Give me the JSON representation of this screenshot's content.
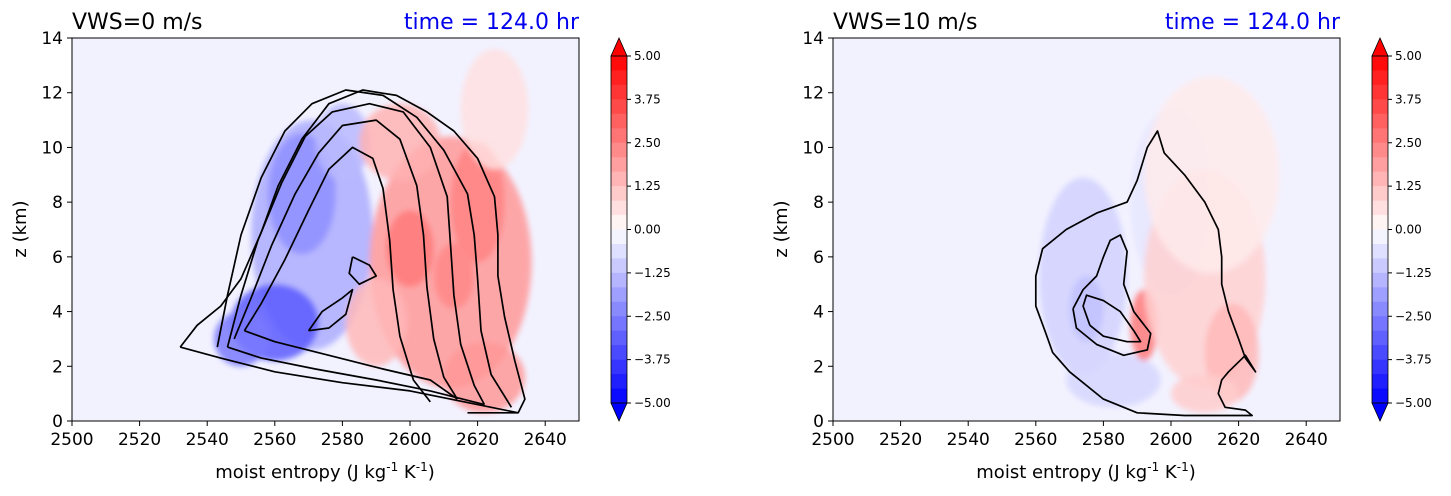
{
  "chart_data": [
    {
      "type": "heatmap",
      "title": "VWS=0 m/s",
      "time_label": "time = 124.0 hr",
      "xlabel": "moist entropy (J kg$^{-1}$ K$^{-1}$)",
      "ylabel": "z (km)",
      "xlim": [
        2500,
        2650
      ],
      "ylim": [
        0,
        14
      ],
      "xticks": [
        2500,
        2520,
        2540,
        2560,
        2580,
        2600,
        2620,
        2640
      ],
      "yticks": [
        0,
        2,
        4,
        6,
        8,
        10,
        12,
        14
      ],
      "colorbar": {
        "ticks": [
          "5.00",
          "3.75",
          "2.50",
          "1.25",
          "0.00",
          "−1.25",
          "−2.50",
          "−3.75",
          "−5.00"
        ],
        "range": [
          -5,
          5
        ],
        "extend": "both"
      },
      "blobs": [
        {
          "x": 2571,
          "y": 6.8,
          "rx": 18,
          "ry": 4.2,
          "v": -1.6
        },
        {
          "x": 2560,
          "y": 3.6,
          "rx": 13,
          "ry": 1.4,
          "v": -3.2
        },
        {
          "x": 2568,
          "y": 8.3,
          "rx": 10,
          "ry": 2.2,
          "v": -2.2
        },
        {
          "x": 2580,
          "y": 10.2,
          "rx": 8,
          "ry": 1.4,
          "v": -1.4
        },
        {
          "x": 2550,
          "y": 3.0,
          "rx": 8,
          "ry": 1.0,
          "v": -2.6
        },
        {
          "x": 2612,
          "y": 5.8,
          "rx": 24,
          "ry": 4.6,
          "v": 2.0
        },
        {
          "x": 2620,
          "y": 8.0,
          "rx": 8,
          "ry": 2.2,
          "v": 2.4
        },
        {
          "x": 2600,
          "y": 6.3,
          "rx": 7,
          "ry": 1.4,
          "v": 2.6
        },
        {
          "x": 2613,
          "y": 5.3,
          "rx": 6,
          "ry": 1.2,
          "v": 2.3
        },
        {
          "x": 2622,
          "y": 1.6,
          "rx": 12,
          "ry": 1.3,
          "v": 2.0
        },
        {
          "x": 2597,
          "y": 10.2,
          "rx": 12,
          "ry": 1.4,
          "v": 1.5
        },
        {
          "x": 2625,
          "y": 11.4,
          "rx": 10,
          "ry": 2.2,
          "v": 0.6
        },
        {
          "x": 2590,
          "y": 3.6,
          "rx": 9,
          "ry": 1.6,
          "v": 1.4
        }
      ],
      "contours": [
        [
          [
            2551,
            3.3
          ],
          [
            2556,
            4.3
          ],
          [
            2563,
            5.9
          ],
          [
            2570,
            7.7
          ],
          [
            2576,
            9.2
          ],
          [
            2583,
            10.0
          ],
          [
            2589,
            9.6
          ],
          [
            2592,
            8.5
          ],
          [
            2594,
            6.6
          ],
          [
            2595,
            4.8
          ],
          [
            2597,
            3.1
          ],
          [
            2601,
            1.5
          ],
          [
            2606,
            0.7
          ]
        ],
        [
          [
            2548,
            3.0
          ],
          [
            2553,
            4.5
          ],
          [
            2559,
            6.4
          ],
          [
            2566,
            8.3
          ],
          [
            2573,
            9.8
          ],
          [
            2580,
            10.8
          ],
          [
            2590,
            11.0
          ],
          [
            2597,
            10.3
          ],
          [
            2602,
            8.6
          ],
          [
            2604,
            6.8
          ],
          [
            2605,
            4.9
          ],
          [
            2607,
            3.0
          ],
          [
            2610,
            1.6
          ],
          [
            2614,
            0.8
          ]
        ],
        [
          [
            2546,
            2.7
          ],
          [
            2550,
            4.6
          ],
          [
            2555,
            6.6
          ],
          [
            2562,
            8.7
          ],
          [
            2569,
            10.4
          ],
          [
            2577,
            11.3
          ],
          [
            2588,
            11.6
          ],
          [
            2598,
            11.3
          ],
          [
            2606,
            10.0
          ],
          [
            2611,
            8.2
          ],
          [
            2612,
            6.4
          ],
          [
            2613,
            4.6
          ],
          [
            2615,
            2.8
          ],
          [
            2619,
            1.3
          ],
          [
            2622,
            0.6
          ]
        ],
        [
          [
            2543,
            2.7
          ],
          [
            2546,
            4.6
          ],
          [
            2550,
            6.8
          ],
          [
            2556,
            8.9
          ],
          [
            2563,
            10.6
          ],
          [
            2571,
            11.6
          ],
          [
            2581,
            12.1
          ],
          [
            2592,
            11.9
          ],
          [
            2602,
            11.1
          ],
          [
            2610,
            9.9
          ],
          [
            2617,
            8.3
          ],
          [
            2619,
            6.8
          ],
          [
            2620,
            5.2
          ],
          [
            2621,
            3.3
          ],
          [
            2624,
            1.7
          ],
          [
            2630,
            0.5
          ]
        ],
        [
          [
            2532,
            2.7
          ],
          [
            2537,
            3.5
          ],
          [
            2544,
            4.2
          ],
          [
            2550,
            5.2
          ],
          [
            2556,
            6.9
          ],
          [
            2561,
            8.6
          ],
          [
            2568,
            10.3
          ],
          [
            2576,
            11.6
          ],
          [
            2586,
            12.1
          ],
          [
            2596,
            11.9
          ],
          [
            2605,
            11.3
          ],
          [
            2613,
            10.6
          ],
          [
            2620,
            9.6
          ],
          [
            2625,
            8.2
          ],
          [
            2626,
            6.8
          ],
          [
            2626,
            5.3
          ],
          [
            2628,
            3.8
          ],
          [
            2631,
            2.2
          ],
          [
            2634,
            0.8
          ],
          [
            2632,
            0.3
          ],
          [
            2617,
            0.3
          ]
        ],
        [
          [
            2532,
            2.7
          ],
          [
            2544,
            2.3
          ],
          [
            2560,
            1.8
          ],
          [
            2580,
            1.4
          ],
          [
            2600,
            1.1
          ],
          [
            2620,
            0.6
          ],
          [
            2632,
            0.3
          ]
        ],
        [
          [
            2546,
            2.7
          ],
          [
            2556,
            2.3
          ],
          [
            2572,
            1.9
          ],
          [
            2590,
            1.5
          ],
          [
            2606,
            1.1
          ],
          [
            2622,
            0.6
          ]
        ],
        [
          [
            2551,
            3.3
          ],
          [
            2560,
            2.9
          ],
          [
            2576,
            2.4
          ],
          [
            2592,
            1.9
          ],
          [
            2606,
            1.5
          ],
          [
            2614,
            0.8
          ]
        ],
        [
          [
            2570,
            3.3
          ],
          [
            2574,
            4.0
          ],
          [
            2580,
            4.5
          ],
          [
            2583,
            4.8
          ],
          [
            2581,
            3.9
          ],
          [
            2576,
            3.4
          ],
          [
            2570,
            3.3
          ]
        ],
        [
          [
            2583,
            6.0
          ],
          [
            2588,
            5.7
          ],
          [
            2590,
            5.3
          ],
          [
            2585,
            5.0
          ],
          [
            2582,
            5.4
          ],
          [
            2583,
            6.0
          ]
        ]
      ]
    },
    {
      "type": "heatmap",
      "title": "VWS=10 m/s",
      "time_label": "time = 124.0 hr",
      "xlabel": "moist entropy (J kg$^{-1}$ K$^{-1}$)",
      "ylabel": "z (km)",
      "xlim": [
        2500,
        2650
      ],
      "ylim": [
        0,
        14
      ],
      "xticks": [
        2500,
        2520,
        2540,
        2560,
        2580,
        2600,
        2620,
        2640
      ],
      "yticks": [
        0,
        2,
        4,
        6,
        8,
        10,
        12,
        14
      ],
      "colorbar": {
        "ticks": [
          "5.00",
          "3.75",
          "2.50",
          "1.25",
          "0.00",
          "−1.25",
          "−2.50",
          "−3.75",
          "−5.00"
        ],
        "range": [
          -5,
          5
        ],
        "extend": "both"
      },
      "blobs": [
        {
          "x": 2575,
          "y": 4.1,
          "rx": 5,
          "ry": 1.2,
          "v": -3.0
        },
        {
          "x": 2574,
          "y": 5.3,
          "rx": 13,
          "ry": 3.6,
          "v": -0.9
        },
        {
          "x": 2583,
          "y": 1.5,
          "rx": 14,
          "ry": 1.0,
          "v": -0.8
        },
        {
          "x": 2600,
          "y": 8.0,
          "rx": 12,
          "ry": 3.4,
          "v": -0.5
        },
        {
          "x": 2592,
          "y": 3.5,
          "rx": 4,
          "ry": 1.3,
          "v": 2.6
        },
        {
          "x": 2610,
          "y": 5.2,
          "rx": 18,
          "ry": 4.0,
          "v": 0.9
        },
        {
          "x": 2618,
          "y": 2.5,
          "rx": 8,
          "ry": 1.8,
          "v": 1.4
        },
        {
          "x": 2612,
          "y": 9.0,
          "rx": 20,
          "ry": 3.6,
          "v": 0.4
        },
        {
          "x": 2610,
          "y": 1.0,
          "rx": 10,
          "ry": 0.7,
          "v": 1.0
        }
      ],
      "contours": [
        [
          [
            2576,
            3.5
          ],
          [
            2574,
            4.2
          ],
          [
            2575,
            4.6
          ],
          [
            2580,
            4.4
          ],
          [
            2585,
            4.0
          ],
          [
            2589,
            3.3
          ],
          [
            2591,
            2.9
          ],
          [
            2587,
            2.9
          ],
          [
            2580,
            3.1
          ],
          [
            2576,
            3.5
          ]
        ],
        [
          [
            2571,
            4.1
          ],
          [
            2574,
            4.8
          ],
          [
            2578,
            5.3
          ],
          [
            2580,
            6.0
          ],
          [
            2582,
            6.6
          ],
          [
            2585,
            6.8
          ],
          [
            2587,
            6.2
          ],
          [
            2586,
            5.0
          ],
          [
            2589,
            4.0
          ],
          [
            2594,
            3.2
          ],
          [
            2593,
            2.6
          ],
          [
            2586,
            2.4
          ],
          [
            2578,
            2.8
          ],
          [
            2572,
            3.4
          ],
          [
            2571,
            4.1
          ]
        ],
        [
          [
            2563,
            3.2
          ],
          [
            2560,
            4.2
          ],
          [
            2560,
            5.3
          ],
          [
            2562,
            6.3
          ],
          [
            2569,
            7.0
          ],
          [
            2578,
            7.6
          ],
          [
            2587,
            8.0
          ],
          [
            2590,
            8.8
          ],
          [
            2593,
            10.0
          ],
          [
            2596,
            10.6
          ],
          [
            2598,
            9.8
          ],
          [
            2604,
            9.0
          ],
          [
            2610,
            8.0
          ],
          [
            2614,
            7.0
          ],
          [
            2615,
            6.0
          ],
          [
            2615,
            5.0
          ],
          [
            2617,
            4.0
          ],
          [
            2620,
            3.0
          ],
          [
            2622,
            2.3
          ],
          [
            2625,
            1.8
          ],
          [
            2622,
            2.4
          ],
          [
            2617,
            1.8
          ],
          [
            2615,
            1.5
          ],
          [
            2614,
            1.0
          ],
          [
            2616,
            0.5
          ],
          [
            2622,
            0.4
          ],
          [
            2624,
            0.2
          ],
          [
            2604,
            0.2
          ],
          [
            2590,
            0.3
          ],
          [
            2580,
            0.8
          ],
          [
            2570,
            1.8
          ],
          [
            2565,
            2.5
          ],
          [
            2563,
            3.2
          ]
        ]
      ]
    }
  ]
}
